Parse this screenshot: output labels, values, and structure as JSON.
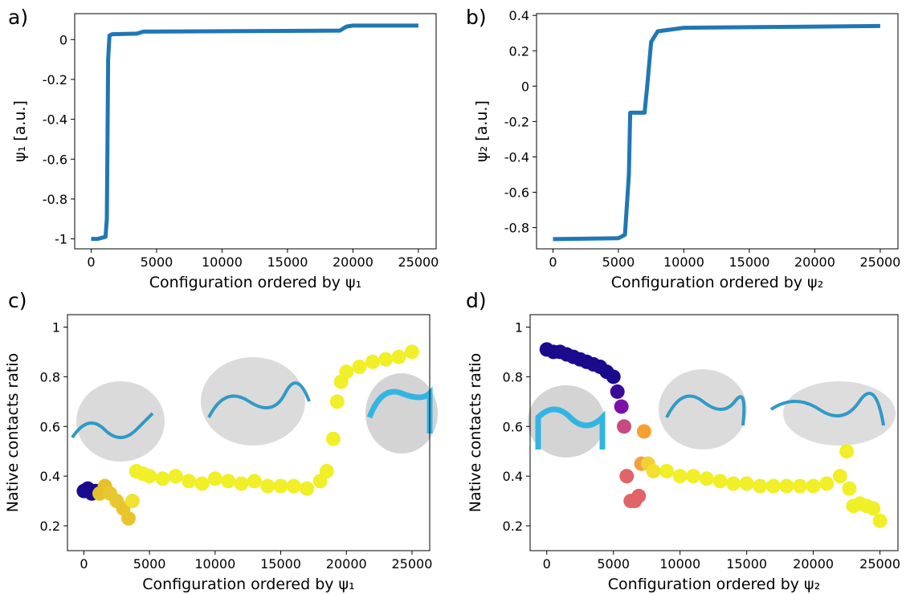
{
  "chart_data": [
    {
      "type": "line",
      "panel_label": "a)",
      "x_label": "Configuration ordered by ψ₁",
      "y_label": "ψ₁ [a.u.]",
      "color": "#1f77b4",
      "x": [
        0,
        500,
        1100,
        1200,
        1250,
        1300,
        1400,
        1600,
        3500,
        4000,
        10000,
        19000,
        19500,
        20000,
        25000
      ],
      "values": [
        -1.0,
        -1.0,
        -0.99,
        -0.9,
        -0.5,
        -0.1,
        0.02,
        0.027,
        0.03,
        0.04,
        0.042,
        0.045,
        0.065,
        0.07,
        0.07
      ],
      "xlim": [
        -1255,
        26355
      ],
      "ylim": [
        -1.05,
        0.13
      ],
      "xticks": [
        0,
        5000,
        10000,
        15000,
        20000,
        25000
      ],
      "yticks": [
        -1.0,
        -0.8,
        -0.6,
        -0.4,
        -0.2,
        0.0
      ]
    },
    {
      "type": "line",
      "panel_label": "b)",
      "x_label": "Configuration ordered by ψ₂",
      "y_label": "ψ₂ [a.u.]",
      "color": "#1f77b4",
      "x": [
        0,
        5000,
        5500,
        5800,
        5900,
        7000,
        7200,
        7500,
        8000,
        10000,
        25000
      ],
      "values": [
        -0.865,
        -0.86,
        -0.84,
        -0.5,
        -0.15,
        -0.15,
        0.0,
        0.25,
        0.31,
        0.33,
        0.34
      ],
      "xlim": [
        -1255,
        26355
      ],
      "ylim": [
        -0.92,
        0.41
      ],
      "xticks": [
        0,
        5000,
        10000,
        15000,
        20000,
        25000
      ],
      "yticks": [
        -0.8,
        -0.6,
        -0.4,
        -0.2,
        0.0,
        0.2,
        0.4
      ]
    },
    {
      "type": "scatter",
      "panel_label": "c)",
      "x_label": "Configuration ordered by ψ₁",
      "y_label": "Native contacts ratio",
      "x": [
        0,
        300,
        600,
        900,
        1200,
        1600,
        2000,
        2500,
        3000,
        3400,
        3700,
        4000,
        4500,
        5000,
        6000,
        7000,
        8000,
        9000,
        10000,
        11000,
        12000,
        13000,
        14000,
        15000,
        16000,
        17000,
        18000,
        18500,
        19000,
        19300,
        19600,
        20000,
        21000,
        22000,
        23000,
        24000,
        25000
      ],
      "values": [
        0.34,
        0.35,
        0.33,
        0.34,
        0.33,
        0.36,
        0.33,
        0.3,
        0.27,
        0.23,
        0.3,
        0.42,
        0.41,
        0.4,
        0.39,
        0.4,
        0.38,
        0.37,
        0.39,
        0.38,
        0.37,
        0.38,
        0.36,
        0.36,
        0.36,
        0.35,
        0.38,
        0.42,
        0.55,
        0.7,
        0.78,
        0.82,
        0.84,
        0.86,
        0.87,
        0.88,
        0.9
      ],
      "colors": [
        "#1a0a8c",
        "#1a0a8c",
        "#1a0a8c",
        "#1a0a8c",
        "#e8c02a",
        "#e8c02a",
        "#e8c830",
        "#e8c830",
        "#eac42c",
        "#eac42c",
        "#f2e230",
        "#f0ef28",
        "#f0ef28",
        "#f0ef28",
        "#f0ef28",
        "#f0ef28",
        "#f0ef28",
        "#f0ef28",
        "#f0ef28",
        "#f0ef28",
        "#f0ef28",
        "#f0ef28",
        "#f0ef28",
        "#f0ef28",
        "#f0ef28",
        "#f0ef28",
        "#f0ef28",
        "#f0ef28",
        "#f0ef28",
        "#f0ef28",
        "#f0ef28",
        "#f0ef28",
        "#f0ef28",
        "#f0ef28",
        "#f0ef28",
        "#f0ef28",
        "#f0ef28"
      ],
      "xlim": [
        -1250,
        26350
      ],
      "ylim": [
        0.1,
        1.05
      ],
      "xticks": [
        0,
        5000,
        10000,
        15000,
        20000,
        25000
      ],
      "yticks": [
        0.2,
        0.4,
        0.6,
        0.8,
        1.0
      ]
    },
    {
      "type": "scatter",
      "panel_label": "d)",
      "x_label": "Configuration ordered by ψ₂",
      "y_label": "Native contacts ratio",
      "x": [
        0,
        500,
        1000,
        1500,
        2000,
        2500,
        3000,
        3500,
        4000,
        4500,
        5000,
        5300,
        5600,
        5800,
        6000,
        6300,
        6600,
        6900,
        7100,
        7300,
        7600,
        8000,
        9000,
        10000,
        11000,
        12000,
        13000,
        14000,
        15000,
        16000,
        17000,
        18000,
        19000,
        20000,
        21000,
        22000,
        22500,
        22700,
        23000,
        23500,
        24000,
        24500,
        25000
      ],
      "values": [
        0.91,
        0.9,
        0.9,
        0.89,
        0.88,
        0.87,
        0.86,
        0.85,
        0.84,
        0.82,
        0.8,
        0.74,
        0.68,
        0.6,
        0.4,
        0.3,
        0.3,
        0.32,
        0.45,
        0.58,
        0.45,
        0.42,
        0.42,
        0.4,
        0.4,
        0.39,
        0.38,
        0.37,
        0.37,
        0.36,
        0.36,
        0.36,
        0.36,
        0.36,
        0.37,
        0.4,
        0.5,
        0.35,
        0.28,
        0.29,
        0.28,
        0.27,
        0.22
      ],
      "colors": [
        "#1a0a8c",
        "#1a0a8c",
        "#1a0a8c",
        "#1a0a8c",
        "#1a0a8c",
        "#1a0a8c",
        "#1a0a8c",
        "#1a0a8c",
        "#1a0a8c",
        "#1a0a8c",
        "#1a0a8c",
        "#3a0a9a",
        "#7a10a8",
        "#c84a80",
        "#e06468",
        "#e06468",
        "#e06468",
        "#e06468",
        "#f0a040",
        "#f5a030",
        "#f2d035",
        "#f2e030",
        "#f0ef28",
        "#f0ef28",
        "#f0ef28",
        "#f0ef28",
        "#f0ef28",
        "#f0ef28",
        "#f0ef28",
        "#f0ef28",
        "#f0ef28",
        "#f0ef28",
        "#f0ef28",
        "#f0ef28",
        "#f0ef28",
        "#f0ef28",
        "#f0ef28",
        "#f0ef28",
        "#f0ef28",
        "#f0ef28",
        "#f0ef28",
        "#f0ef28",
        "#f0ef28"
      ],
      "xlim": [
        -1250,
        26350
      ],
      "ylim": [
        0.1,
        1.05
      ],
      "xticks": [
        0,
        5000,
        10000,
        15000,
        20000,
        25000
      ],
      "yticks": [
        0.2,
        0.4,
        0.6,
        0.8,
        1.0
      ]
    }
  ]
}
